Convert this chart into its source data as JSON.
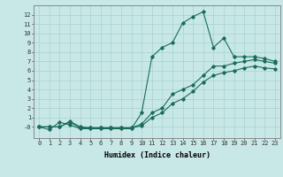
{
  "xlabel": "Humidex (Indice chaleur)",
  "bg_color": "#c8e8e8",
  "grid_color": "#aed4d4",
  "line_color": "#1a6b5a",
  "xlim": [
    -0.5,
    23.5
  ],
  "ylim": [
    -1.2,
    13
  ],
  "xticks": [
    0,
    1,
    2,
    3,
    4,
    5,
    6,
    7,
    8,
    9,
    10,
    11,
    12,
    13,
    14,
    15,
    16,
    17,
    18,
    19,
    20,
    21,
    22,
    23
  ],
  "yticks": [
    0,
    1,
    2,
    3,
    4,
    5,
    6,
    7,
    8,
    9,
    10,
    11,
    12
  ],
  "ytick_labels": [
    "-0",
    "1",
    "2",
    "3",
    "4",
    "5",
    "6",
    "7",
    "8",
    "9",
    "10",
    "11",
    "12"
  ],
  "curve1_x": [
    0,
    1,
    2,
    3,
    4,
    5,
    6,
    7,
    8,
    9,
    10,
    11,
    12,
    13,
    14,
    15,
    16,
    17,
    18,
    19,
    20,
    21,
    22,
    23
  ],
  "curve1_y": [
    0,
    -0.3,
    0.5,
    0.2,
    -0.2,
    -0.2,
    -0.2,
    -0.2,
    -0.2,
    -0.2,
    1.5,
    7.5,
    8.5,
    9.0,
    11.1,
    11.8,
    12.3,
    8.5,
    9.5,
    7.5,
    7.5,
    7.5,
    7.3,
    7.0
  ],
  "curve2_x": [
    0,
    1,
    2,
    3,
    4,
    5,
    6,
    7,
    8,
    9,
    10,
    11,
    12,
    13,
    14,
    15,
    16,
    17,
    18,
    19,
    20,
    21,
    22,
    23
  ],
  "curve2_y": [
    0,
    0,
    0,
    0.6,
    0,
    -0.1,
    -0.1,
    -0.1,
    -0.1,
    -0.1,
    0.3,
    1.5,
    2.0,
    3.5,
    4.0,
    4.5,
    5.5,
    6.5,
    6.5,
    6.8,
    7.0,
    7.2,
    7.0,
    6.8
  ],
  "curve3_x": [
    0,
    1,
    2,
    3,
    4,
    5,
    6,
    7,
    8,
    9,
    10,
    11,
    12,
    13,
    14,
    15,
    16,
    17,
    18,
    19,
    20,
    21,
    22,
    23
  ],
  "curve3_y": [
    0,
    0,
    0,
    0.5,
    -0.1,
    -0.1,
    -0.1,
    -0.1,
    -0.1,
    -0.1,
    0.1,
    1.0,
    1.5,
    2.5,
    3.0,
    3.8,
    4.8,
    5.5,
    5.8,
    6.0,
    6.3,
    6.5,
    6.3,
    6.2
  ],
  "xlabel_fontsize": 6,
  "tick_fontsize": 5,
  "linewidth": 0.8,
  "markersize": 1.8
}
